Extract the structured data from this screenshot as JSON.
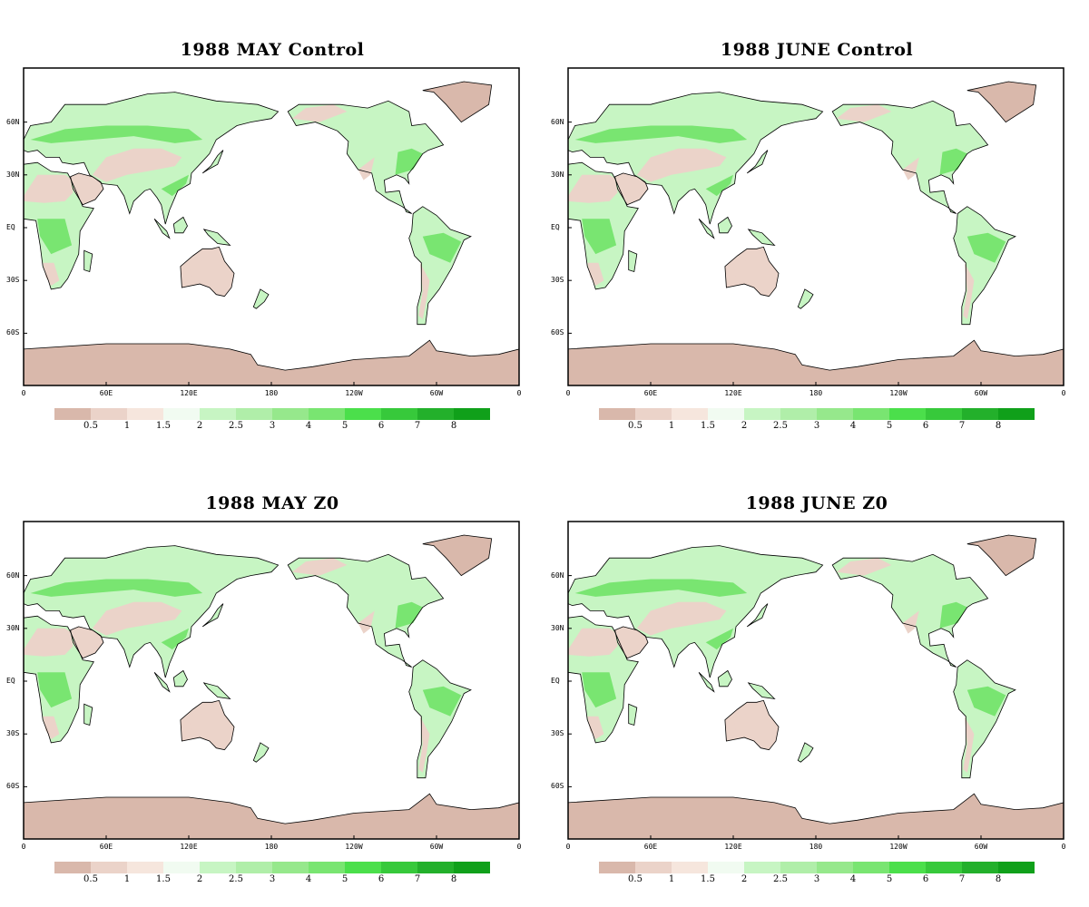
{
  "panels": [
    {
      "title": "1988 MAY Control"
    },
    {
      "title": "1988 JUNE Control"
    },
    {
      "title": "1988 MAY Z0"
    },
    {
      "title": "1988 JUNE Z0"
    }
  ],
  "lat_labels": [
    "60N",
    "30N",
    "EQ",
    "30S",
    "60S"
  ],
  "lon_labels": [
    "0",
    "60E",
    "120E",
    "180",
    "120W",
    "60W",
    "0"
  ],
  "colorbar": {
    "labels": [
      "0.5",
      "1",
      "1.5",
      "2",
      "2.5",
      "3",
      "4",
      "5",
      "6",
      "7",
      "8"
    ],
    "colors": [
      "#d9b8ab",
      "#ebd3c9",
      "#f6e6dd",
      "#f1fbf1",
      "#c7f5c3",
      "#b0eea9",
      "#96e88c",
      "#79e571",
      "#4bdf4b",
      "#37c93b",
      "#23b02b",
      "#10a01a"
    ]
  },
  "map_colors": {
    "ocean": "#ffffff",
    "dry": "#d9b8ab",
    "tan": "#ebd3c9",
    "light": "#f6e6dd",
    "pale_green": "#c7f5c3",
    "green": "#79e571",
    "dark_green": "#4bdf4b"
  }
}
